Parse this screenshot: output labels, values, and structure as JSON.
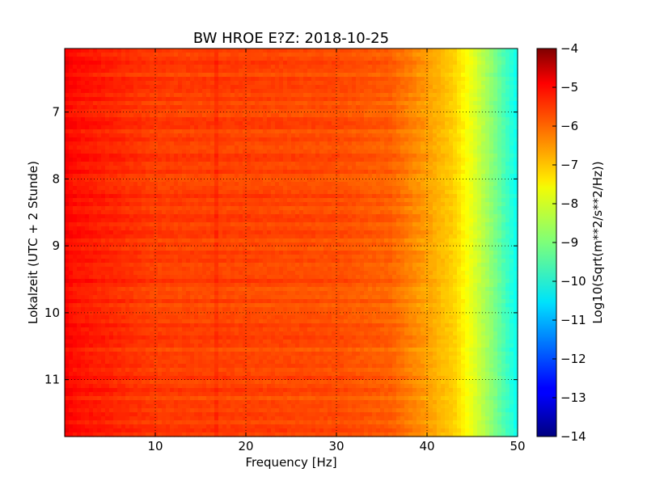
{
  "chart_data": {
    "type": "heatmap",
    "title": "BW HROE E?Z: 2018-10-25",
    "xlabel": "Frequency [Hz]",
    "ylabel": "Lokalzeit (UTC + 2 Stunde)",
    "colorbar_label": "Log10(Sqrt(m**2/s**2/Hz))",
    "xlim": [
      0,
      50
    ],
    "ylim": [
      11.85,
      6.05
    ],
    "y_axis_inverted": true,
    "xticks": [
      "10",
      "20",
      "30",
      "40",
      "50"
    ],
    "yticks": [
      "7",
      "8",
      "9",
      "10",
      "11"
    ],
    "colorbar_range": [
      -14,
      -4
    ],
    "colorbar_ticks": [
      "-4",
      "-5",
      "-6",
      "-7",
      "-8",
      "-9",
      "-10",
      "-11",
      "-12",
      "-13",
      "-14"
    ],
    "colormap": "jet",
    "grid": true,
    "grid_style": "dotted",
    "value_profile_hz": [
      0,
      1,
      5,
      10,
      20,
      30,
      36,
      40,
      43,
      45,
      47,
      50
    ],
    "value_profile_log10": [
      -5.2,
      -5.4,
      -5.6,
      -5.85,
      -5.9,
      -6.0,
      -6.2,
      -6.8,
      -7.3,
      -8.0,
      -8.8,
      -10.2
    ]
  }
}
